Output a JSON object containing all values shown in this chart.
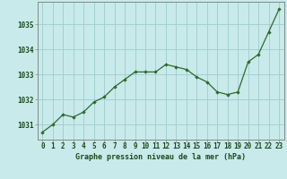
{
  "x": [
    0,
    1,
    2,
    3,
    4,
    5,
    6,
    7,
    8,
    9,
    10,
    11,
    12,
    13,
    14,
    15,
    16,
    17,
    18,
    19,
    20,
    21,
    22,
    23
  ],
  "y": [
    1030.7,
    1031.0,
    1031.4,
    1031.3,
    1031.5,
    1031.9,
    1032.1,
    1032.5,
    1032.8,
    1033.1,
    1033.1,
    1033.1,
    1033.4,
    1033.3,
    1033.2,
    1032.9,
    1032.7,
    1032.3,
    1032.2,
    1032.3,
    1033.5,
    1033.8,
    1034.7,
    1035.6
  ],
  "line_color": "#2d6a2d",
  "marker_color": "#2d6a2d",
  "background_color": "#c8eaea",
  "grid_color": "#a0cccc",
  "xlabel": "Graphe pression niveau de la mer (hPa)",
  "xlabel_color": "#1a4a1a",
  "xlabel_fontsize": 6.0,
  "ylabel_ticks": [
    1031,
    1032,
    1033,
    1034,
    1035
  ],
  "xlim": [
    -0.5,
    23.5
  ],
  "ylim": [
    1030.4,
    1035.9
  ],
  "tick_fontsize": 5.5,
  "tick_color": "#1a4a1a",
  "border_color": "#888888"
}
